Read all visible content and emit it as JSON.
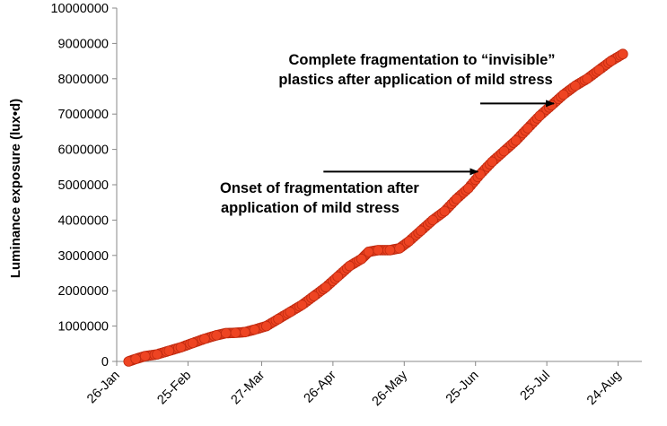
{
  "chart_data": {
    "type": "scatter",
    "ylabel": "Luminance exposure (lux•d)",
    "ylim": [
      0,
      10000000
    ],
    "yticks": [
      "0",
      "1000000",
      "2000000",
      "3000000",
      "4000000",
      "5000000",
      "6000000",
      "7000000",
      "8000000",
      "9000000",
      "10000000"
    ],
    "xlim": [
      "2012-01-26",
      "2012-09-03"
    ],
    "xticks": [
      {
        "label": "26-Jan",
        "date": "2012-01-26"
      },
      {
        "label": "25-Feb",
        "date": "2012-02-25"
      },
      {
        "label": "27-Mar",
        "date": "2012-03-27"
      },
      {
        "label": "26-Apr",
        "date": "2012-04-26"
      },
      {
        "label": "26-May",
        "date": "2012-05-26"
      },
      {
        "label": "25-Jun",
        "date": "2012-06-25"
      },
      {
        "label": "25-Jul",
        "date": "2012-07-25"
      },
      {
        "label": "24-Aug",
        "date": "2012-08-24"
      }
    ],
    "marker_color": "#ee4422",
    "marker_edge": "#c02a10",
    "series": [
      {
        "points": [
          [
            "2012-01-31",
            0
          ],
          [
            "2012-02-03",
            70000
          ],
          [
            "2012-02-07",
            150000
          ],
          [
            "2012-02-12",
            200000
          ],
          [
            "2012-02-17",
            300000
          ],
          [
            "2012-02-22",
            400000
          ],
          [
            "2012-02-27",
            520000
          ],
          [
            "2012-03-03",
            640000
          ],
          [
            "2012-03-08",
            740000
          ],
          [
            "2012-03-12",
            800000
          ],
          [
            "2012-03-16",
            810000
          ],
          [
            "2012-03-20",
            830000
          ],
          [
            "2012-03-24",
            900000
          ],
          [
            "2012-03-29",
            1000000
          ],
          [
            "2012-04-03",
            1200000
          ],
          [
            "2012-04-08",
            1400000
          ],
          [
            "2012-04-13",
            1600000
          ],
          [
            "2012-04-18",
            1850000
          ],
          [
            "2012-04-23",
            2100000
          ],
          [
            "2012-04-28",
            2400000
          ],
          [
            "2012-05-03",
            2700000
          ],
          [
            "2012-05-08",
            2900000
          ],
          [
            "2012-05-11",
            3100000
          ],
          [
            "2012-05-15",
            3150000
          ],
          [
            "2012-05-20",
            3150000
          ],
          [
            "2012-05-24",
            3200000
          ],
          [
            "2012-05-28",
            3400000
          ],
          [
            "2012-06-02",
            3700000
          ],
          [
            "2012-06-07",
            4000000
          ],
          [
            "2012-06-12",
            4250000
          ],
          [
            "2012-06-17",
            4600000
          ],
          [
            "2012-06-22",
            4900000
          ],
          [
            "2012-06-27",
            5300000
          ],
          [
            "2012-07-02",
            5650000
          ],
          [
            "2012-07-07",
            5950000
          ],
          [
            "2012-07-12",
            6250000
          ],
          [
            "2012-07-17",
            6600000
          ],
          [
            "2012-07-22",
            6950000
          ],
          [
            "2012-07-27",
            7250000
          ],
          [
            "2012-08-01",
            7550000
          ],
          [
            "2012-08-06",
            7800000
          ],
          [
            "2012-08-11",
            8000000
          ],
          [
            "2012-08-16",
            8250000
          ],
          [
            "2012-08-21",
            8500000
          ],
          [
            "2012-08-26",
            8700000
          ]
        ]
      }
    ],
    "annotations": [
      {
        "lines": [
          "Complete fragmentation to “invisible”",
          "plastics after application of mild stress"
        ],
        "arrow_from": [
          "2012-06-27",
          7300000
        ],
        "arrow_to": [
          "2012-07-28",
          7300000
        ]
      },
      {
        "lines": [
          "Onset of fragmentation after",
          "application of mild stress"
        ],
        "arrow_from": [
          "2012-04-22",
          5370000
        ],
        "arrow_to": [
          "2012-06-26",
          5370000
        ]
      }
    ]
  }
}
